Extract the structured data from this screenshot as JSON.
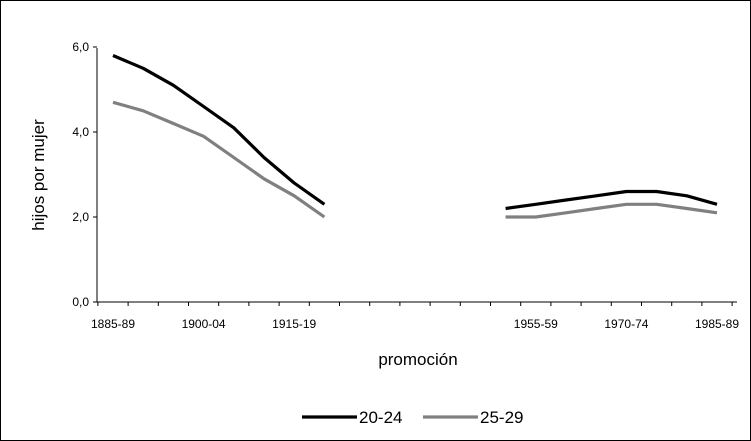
{
  "chart_data": {
    "type": "line",
    "xlabel": "promoción",
    "ylabel": "hijos por mujer",
    "ylim": [
      0,
      6
    ],
    "yticks": [
      "0,0",
      "2,0",
      "4,0",
      "6,0"
    ],
    "x_tick_labels": [
      "1885-89",
      "1900-04",
      "1915-19",
      "1955-59",
      "1970-74",
      "1985-89"
    ],
    "grid": false,
    "legend_position": "bottom",
    "series": [
      {
        "name": "20-24",
        "color": "#000000",
        "segments": [
          {
            "x": [
              "1885-89",
              "1890-94",
              "1895-99",
              "1900-04",
              "1905-09",
              "1910-14",
              "1915-19",
              "1920-24"
            ],
            "values": [
              5.8,
              5.5,
              5.1,
              4.6,
              4.1,
              3.4,
              2.8,
              2.3
            ]
          },
          {
            "x": [
              "1950-54",
              "1955-59",
              "1960-64",
              "1965-69",
              "1970-74",
              "1975-79",
              "1980-84",
              "1985-89"
            ],
            "values": [
              2.2,
              2.3,
              2.4,
              2.5,
              2.6,
              2.6,
              2.5,
              2.3
            ]
          }
        ]
      },
      {
        "name": "25-29",
        "color": "#808080",
        "segments": [
          {
            "x": [
              "1885-89",
              "1890-94",
              "1895-99",
              "1900-04",
              "1905-09",
              "1910-14",
              "1915-19",
              "1920-24"
            ],
            "values": [
              4.7,
              4.5,
              4.2,
              3.9,
              3.4,
              2.9,
              2.5,
              2.0
            ]
          },
          {
            "x": [
              "1950-54",
              "1955-59",
              "1960-64",
              "1965-69",
              "1970-74",
              "1975-79",
              "1980-84",
              "1985-89"
            ],
            "values": [
              2.0,
              2.0,
              2.1,
              2.2,
              2.3,
              2.3,
              2.2,
              2.1
            ]
          }
        ]
      }
    ]
  }
}
